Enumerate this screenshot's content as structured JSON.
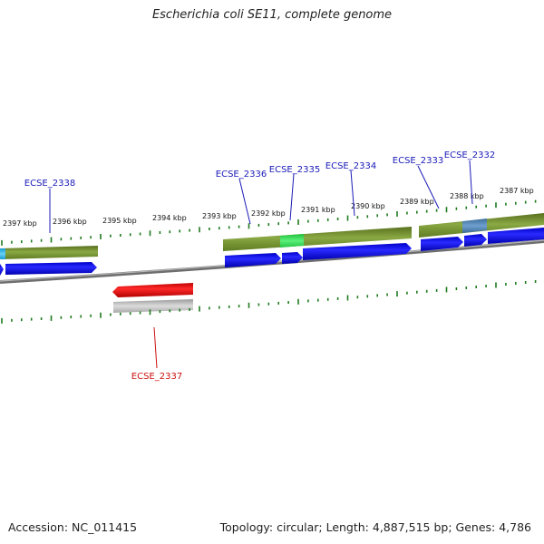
{
  "title": "Escherichia coli SE11, complete genome",
  "footer": {
    "accession": "Accession: NC_011415",
    "topology": "Topology: circular; Length: 4,887,515 bp; Genes: 4,786"
  },
  "colors": {
    "background": "#ffffff",
    "forward_gene_label": "#1a1ab8",
    "reverse_gene_label": "#cc1111",
    "forward_cds_arrow": "#0a0af0",
    "reverse_cds_arrow": "#ee1111",
    "gene_band": "#6f8f2a",
    "highlight_green": "#33dd55",
    "highlight_blue": "#4a7fb0",
    "highlight_cyan": "#2fb0e0",
    "reverse_band": "#bfbfbf",
    "backbone": "#777777",
    "tick": "#1f7a1f"
  },
  "scale_labels": [
    {
      "id": "2397",
      "text": "2397 kbp"
    },
    {
      "id": "2396",
      "text": "2396 kbp"
    },
    {
      "id": "2395",
      "text": "2395 kbp"
    },
    {
      "id": "2394",
      "text": "2394 kbp"
    },
    {
      "id": "2393",
      "text": "2393 kbp"
    },
    {
      "id": "2392",
      "text": "2392 kbp"
    },
    {
      "id": "2391",
      "text": "2391 kbp"
    },
    {
      "id": "2390",
      "text": "2390 kbp"
    },
    {
      "id": "2389",
      "text": "2389 kbp"
    },
    {
      "id": "2388",
      "text": "2388 kbp"
    },
    {
      "id": "2387",
      "text": "2387 kbp"
    }
  ],
  "gene_labels": [
    {
      "id": "ECSE_2338",
      "text": "ECSE_2338",
      "strand": "forward"
    },
    {
      "id": "ECSE_2336",
      "text": "ECSE_2336",
      "strand": "forward"
    },
    {
      "id": "ECSE_2335",
      "text": "ECSE_2335",
      "strand": "forward"
    },
    {
      "id": "ECSE_2334",
      "text": "ECSE_2334",
      "strand": "forward"
    },
    {
      "id": "ECSE_2333",
      "text": "ECSE_2333",
      "strand": "forward"
    },
    {
      "id": "ECSE_2332",
      "text": "ECSE_2332",
      "strand": "forward"
    },
    {
      "id": "ECSE_2337",
      "text": "ECSE_2337",
      "strand": "reverse"
    }
  ]
}
